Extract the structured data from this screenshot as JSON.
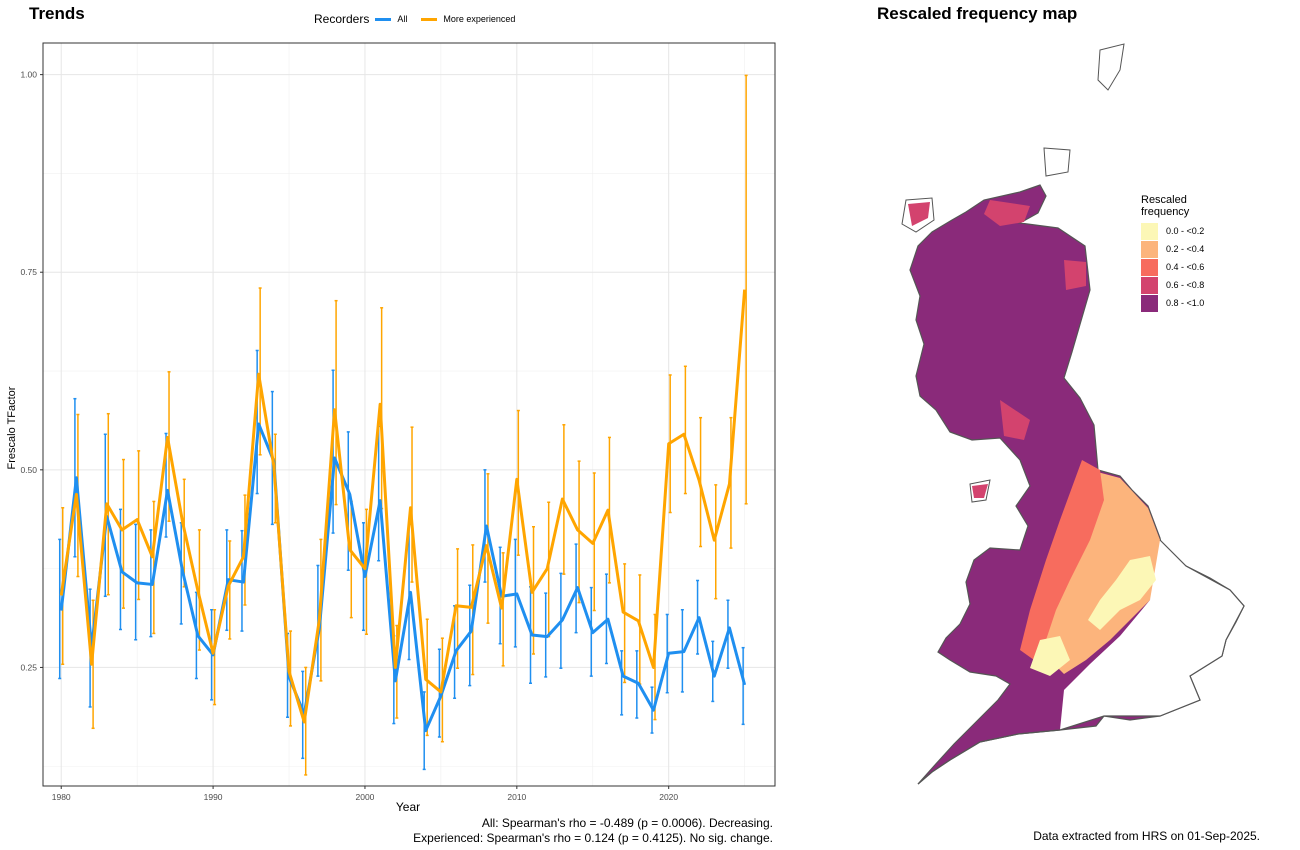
{
  "trends_title": "Trends",
  "map_title": "Rescaled frequency map",
  "legend": {
    "title": "Recorders",
    "items": [
      {
        "label": "All",
        "color": "#1f8ff0"
      },
      {
        "label": "More experienced",
        "color": "#ffa500"
      }
    ]
  },
  "chart_data": {
    "type": "line",
    "xlabel": "Year",
    "ylabel": "Frescalo TFactor",
    "xlim": [
      1978.8,
      2027
    ],
    "ylim": [
      0.1,
      1.04
    ],
    "x_ticks": [
      1980,
      1990,
      2000,
      2010,
      2020
    ],
    "y_ticks": [
      0.25,
      0.5,
      0.75,
      1.0
    ],
    "y_tick_labels": [
      "0.25",
      "0.50",
      "0.75",
      "1.00"
    ],
    "grid": true,
    "error_bars": true,
    "series": [
      {
        "name": "All",
        "color": "#1f8ff0",
        "x": [
          1980,
          1981,
          1982,
          1983,
          1984,
          1985,
          1986,
          1987,
          1988,
          1989,
          1990,
          1991,
          1992,
          1993,
          1994,
          1995,
          1996,
          1997,
          1998,
          1999,
          2000,
          2001,
          2002,
          2003,
          2004,
          2005,
          2006,
          2007,
          2008,
          2009,
          2010,
          2011,
          2012,
          2013,
          2014,
          2015,
          2016,
          2017,
          2018,
          2019,
          2020,
          2021,
          2022,
          2023,
          2024,
          2025
        ],
        "y": [
          0.322,
          0.49,
          0.275,
          0.441,
          0.371,
          0.357,
          0.355,
          0.474,
          0.371,
          0.29,
          0.266,
          0.361,
          0.358,
          0.558,
          0.511,
          0.238,
          0.191,
          0.3,
          0.515,
          0.469,
          0.365,
          0.461,
          0.233,
          0.345,
          0.17,
          0.214,
          0.271,
          0.296,
          0.429,
          0.34,
          0.343,
          0.291,
          0.289,
          0.31,
          0.351,
          0.294,
          0.311,
          0.239,
          0.23,
          0.196,
          0.268,
          0.27,
          0.313,
          0.239,
          0.3,
          0.228
        ],
        "lower": [
          0.236,
          0.39,
          0.2,
          0.34,
          0.298,
          0.285,
          0.289,
          0.415,
          0.305,
          0.236,
          0.209,
          0.297,
          0.296,
          0.47,
          0.431,
          0.187,
          0.135,
          0.239,
          0.42,
          0.373,
          0.297,
          0.385,
          0.179,
          0.26,
          0.121,
          0.162,
          0.211,
          0.227,
          0.358,
          0.28,
          0.276,
          0.23,
          0.238,
          0.249,
          0.294,
          0.239,
          0.255,
          0.19,
          0.186,
          0.167,
          0.218,
          0.219,
          0.267,
          0.207,
          0.249,
          0.178
        ],
        "upper": [
          0.412,
          0.59,
          0.349,
          0.545,
          0.45,
          0.431,
          0.424,
          0.546,
          0.433,
          0.345,
          0.323,
          0.424,
          0.423,
          0.651,
          0.599,
          0.293,
          0.245,
          0.379,
          0.626,
          0.548,
          0.433,
          0.555,
          0.29,
          0.431,
          0.219,
          0.273,
          0.328,
          0.354,
          0.5,
          0.402,
          0.412,
          0.352,
          0.344,
          0.369,
          0.406,
          0.351,
          0.368,
          0.271,
          0.271,
          0.225,
          0.317,
          0.323,
          0.36,
          0.283,
          0.335,
          0.275
        ]
      },
      {
        "name": "More experienced",
        "color": "#ffa500",
        "x": [
          1980,
          1981,
          1982,
          1983,
          1984,
          1985,
          1986,
          1987,
          1988,
          1989,
          1990,
          1991,
          1992,
          1993,
          1994,
          1995,
          1996,
          1997,
          1998,
          1999,
          2000,
          2001,
          2002,
          2003,
          2004,
          2005,
          2006,
          2007,
          2008,
          2009,
          2010,
          2011,
          2012,
          2013,
          2014,
          2015,
          2016,
          2017,
          2018,
          2019,
          2020,
          2021,
          2022,
          2023,
          2024,
          2025
        ],
        "y": [
          0.341,
          0.469,
          0.254,
          0.457,
          0.424,
          0.437,
          0.39,
          0.541,
          0.433,
          0.347,
          0.268,
          0.353,
          0.39,
          0.621,
          0.505,
          0.245,
          0.181,
          0.311,
          0.576,
          0.399,
          0.375,
          0.583,
          0.25,
          0.452,
          0.235,
          0.219,
          0.328,
          0.326,
          0.404,
          0.325,
          0.488,
          0.345,
          0.375,
          0.463,
          0.424,
          0.407,
          0.449,
          0.32,
          0.309,
          0.25,
          0.533,
          0.545,
          0.487,
          0.411,
          0.482,
          0.728
        ],
        "lower": [
          0.254,
          0.365,
          0.173,
          0.342,
          0.325,
          0.336,
          0.293,
          0.435,
          0.352,
          0.272,
          0.203,
          0.286,
          0.329,
          0.519,
          0.433,
          0.176,
          0.114,
          0.233,
          0.456,
          0.313,
          0.292,
          0.451,
          0.186,
          0.358,
          0.164,
          0.156,
          0.249,
          0.241,
          0.306,
          0.252,
          0.392,
          0.267,
          0.289,
          0.368,
          0.332,
          0.322,
          0.357,
          0.231,
          0.229,
          0.184,
          0.446,
          0.47,
          0.403,
          0.337,
          0.401,
          0.457
        ],
        "upper": [
          0.452,
          0.57,
          0.335,
          0.571,
          0.513,
          0.524,
          0.46,
          0.624,
          0.488,
          0.424,
          0.323,
          0.41,
          0.468,
          0.73,
          0.545,
          0.296,
          0.25,
          0.412,
          0.714,
          0.46,
          0.45,
          0.705,
          0.303,
          0.554,
          0.311,
          0.287,
          0.4,
          0.405,
          0.495,
          0.395,
          0.575,
          0.428,
          0.459,
          0.557,
          0.511,
          0.496,
          0.541,
          0.381,
          0.367,
          0.317,
          0.62,
          0.631,
          0.566,
          0.481,
          0.566,
          0.999
        ]
      }
    ]
  },
  "stats": {
    "line1": "All: Spearman's rho = -0.489 (p = 0.0006). Decreasing.",
    "line2": "Experienced: Spearman's rho = 0.124 (p = 0.4125). No sig. change."
  },
  "map_legend": {
    "title_line1": "Rescaled",
    "title_line2": "frequency",
    "items": [
      {
        "label": "0.0 - <0.2",
        "color": "#fcf7b6"
      },
      {
        "label": "0.2 - <0.4",
        "color": "#fcb47c"
      },
      {
        "label": "0.4 - <0.6",
        "color": "#f76c5e"
      },
      {
        "label": "0.6 - <0.8",
        "color": "#d3436e"
      },
      {
        "label": "0.8 - <1.0",
        "color": "#8a2a7a"
      }
    ]
  },
  "extract_note": "Data extracted from HRS on 01-Sep-2025."
}
